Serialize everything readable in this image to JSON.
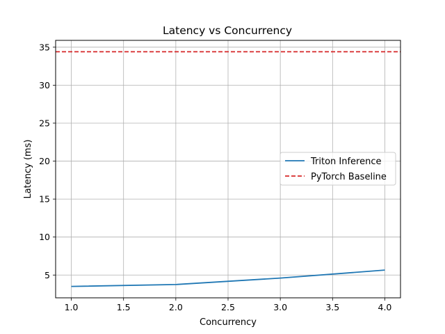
{
  "chart_data": {
    "type": "line",
    "title": "Latency vs Concurrency",
    "xlabel": "Concurrency",
    "ylabel": "Latency (ms)",
    "xlim": [
      0.85,
      4.15
    ],
    "ylim": [
      2.0,
      35.9
    ],
    "xticks": [
      1.0,
      1.5,
      2.0,
      2.5,
      3.0,
      3.5,
      4.0
    ],
    "xtick_labels": [
      "1.0",
      "1.5",
      "2.0",
      "2.5",
      "3.0",
      "3.5",
      "4.0"
    ],
    "yticks": [
      5,
      10,
      15,
      20,
      25,
      30,
      35
    ],
    "ytick_labels": [
      "5",
      "10",
      "15",
      "20",
      "25",
      "30",
      "35"
    ],
    "grid": true,
    "legend_position": "center-right",
    "series": [
      {
        "name": "Triton Inference",
        "style": "solid",
        "color": "#1f77b4",
        "x": [
          1,
          2,
          3,
          4
        ],
        "y": [
          3.5,
          3.75,
          4.6,
          5.65
        ]
      },
      {
        "name": "PyTorch Baseline",
        "style": "dashed",
        "color": "#d62728",
        "hline": 34.4
      }
    ]
  }
}
